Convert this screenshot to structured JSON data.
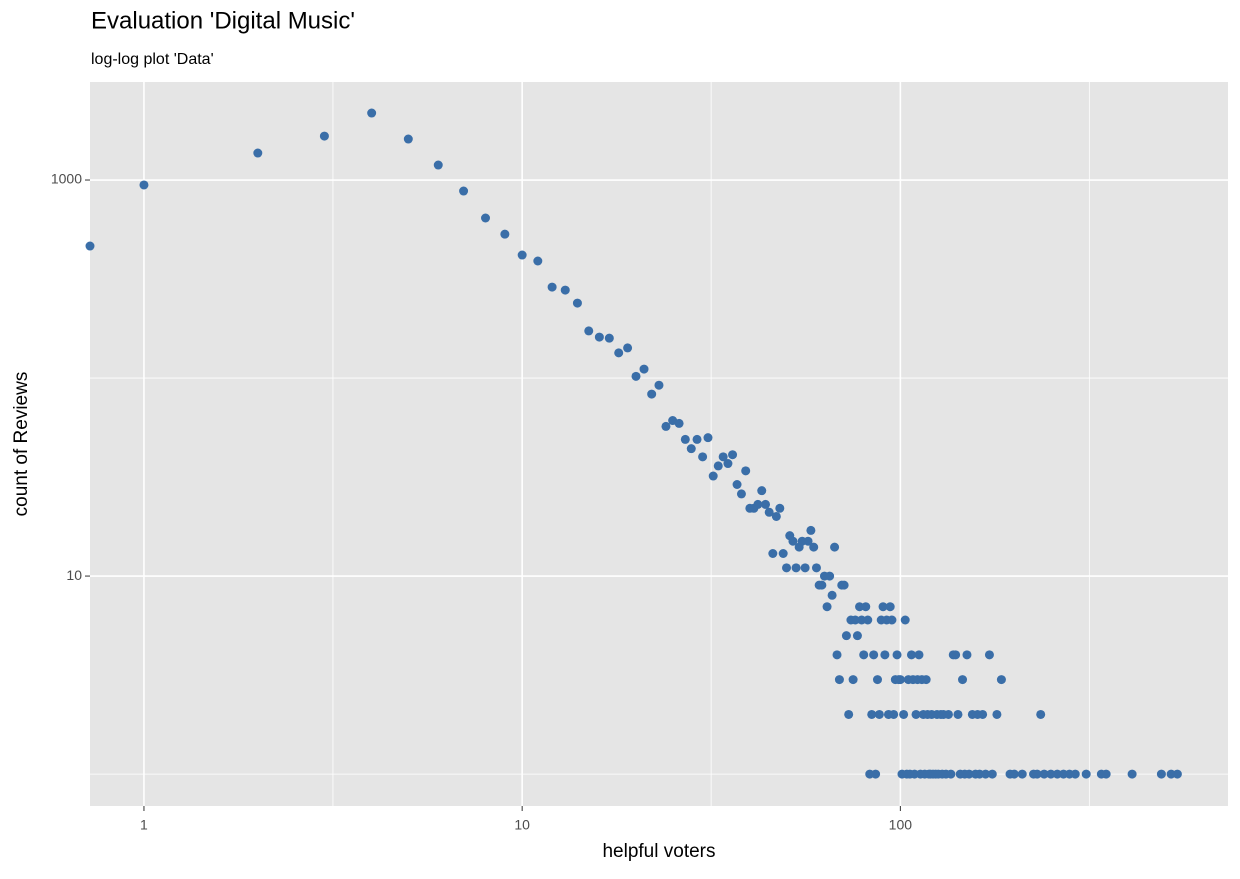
{
  "chart_data": {
    "type": "scatter",
    "title": "Evaluation 'Digital Music'",
    "subtitle": "log-log plot 'Data'",
    "x_label": "helpful voters",
    "y_label": "count of Reviews",
    "log_x": true,
    "log_y": true,
    "grid": true,
    "color": "#3a6ea8",
    "xlim": [
      0.72,
      735
    ],
    "ylim": [
      0.69,
      3126
    ],
    "xticks": [
      1,
      10,
      100
    ],
    "yticks": [
      10,
      1000
    ],
    "x_minor_grid": [
      3.16,
      31.6,
      316
    ],
    "y_minor_grid": [
      1,
      100
    ],
    "x": [
      0.72,
      1,
      2,
      3,
      4,
      5,
      6,
      7,
      8,
      9,
      10,
      11,
      12,
      13,
      14,
      15,
      16,
      17,
      18,
      19,
      20,
      21,
      22,
      23,
      24,
      25,
      26,
      27,
      28,
      29,
      30,
      31,
      32,
      33,
      34,
      35,
      36,
      37,
      38,
      39,
      40,
      41,
      42,
      43,
      44,
      45,
      46,
      47,
      48,
      49,
      50,
      51,
      52,
      53,
      54,
      55,
      56,
      57,
      58,
      59,
      60,
      61,
      62,
      63,
      64,
      65,
      66,
      67,
      68,
      69,
      70,
      71,
      72,
      73,
      74,
      75,
      76,
      77,
      78,
      79,
      80,
      81,
      82,
      83,
      84,
      85,
      86,
      87,
      88,
      89,
      90,
      91,
      92,
      93,
      94,
      95,
      96,
      97,
      98,
      99,
      100,
      101,
      102,
      103,
      104,
      105,
      106,
      107,
      108,
      109,
      110,
      111,
      112,
      113,
      114,
      115,
      116,
      117,
      118,
      119,
      120,
      121,
      122,
      124,
      125,
      126,
      128,
      129,
      130,
      132,
      134,
      136,
      138,
      140,
      142,
      144,
      146,
      148,
      150,
      152,
      155,
      158,
      160,
      162,
      165,
      168,
      172,
      175,
      180,
      185,
      195,
      200,
      210,
      225,
      230,
      235,
      240,
      250,
      260,
      270,
      280,
      290,
      310,
      340,
      350,
      410,
      490,
      520,
      540
    ],
    "values": [
      464,
      944,
      1369,
      1667,
      2179,
      1611,
      1190,
      880,
      643,
      533,
      418,
      390,
      288,
      278,
      239,
      173,
      161,
      159,
      134,
      142,
      102,
      111,
      83,
      92,
      57,
      61,
      59,
      49,
      44,
      49,
      40,
      50,
      32,
      36,
      40,
      37,
      41,
      29,
      26,
      34,
      22,
      22,
      23,
      27,
      23,
      21,
      13,
      20,
      22,
      13,
      11,
      16,
      15,
      11,
      14,
      15,
      11,
      15,
      17,
      14,
      11,
      9,
      9,
      10,
      7,
      10,
      8,
      14,
      4,
      3,
      9,
      9,
      5,
      2,
      6,
      3,
      6,
      5,
      7,
      6,
      4,
      7,
      6,
      1,
      2,
      4,
      1,
      3,
      2,
      6,
      7,
      4,
      6,
      2,
      7,
      6,
      2,
      3,
      4,
      3,
      3,
      1,
      2,
      6,
      1,
      3,
      1,
      4,
      3,
      1,
      2,
      3,
      4,
      1,
      3,
      2,
      1,
      3,
      2,
      1,
      1,
      2,
      1,
      1,
      2,
      1,
      2,
      1,
      2,
      1,
      2,
      1,
      4,
      4,
      2,
      1,
      3,
      1,
      4,
      1,
      2,
      1,
      2,
      1,
      2,
      1,
      4,
      1,
      2,
      3,
      1,
      1,
      1,
      1,
      1,
      2,
      1,
      1,
      1,
      1,
      1,
      1,
      1,
      1,
      1,
      1,
      1,
      1,
      1
    ]
  }
}
